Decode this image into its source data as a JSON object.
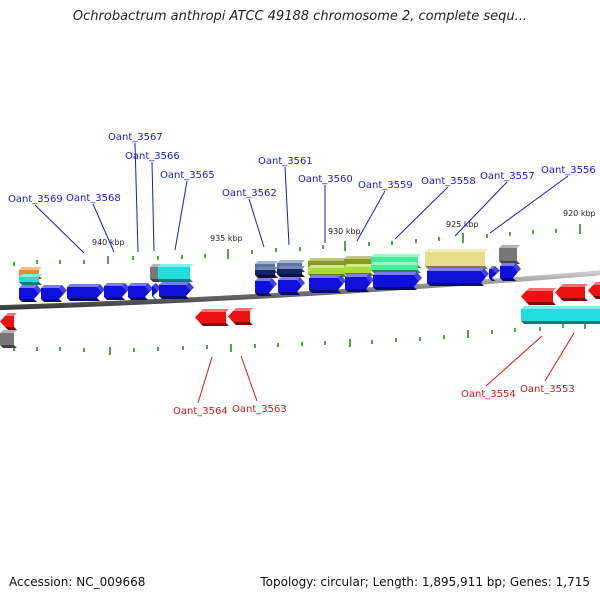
{
  "title": "Ochrobactrum anthropi ATCC 49188 chromosome 2, complete sequ...",
  "footer": {
    "accession": "Accession: NC_009668",
    "summary": "Topology: circular; Length: 1,895,911 bp; Genes: 1,715"
  },
  "scale_ticks": [
    "940 kbp",
    "935 kbp",
    "930 kbp",
    "925 kbp",
    "920 kbp"
  ],
  "genes_forward": [
    "Oant_3569",
    "Oant_3568",
    "Oant_3567",
    "Oant_3566",
    "Oant_3565",
    "Oant_3562",
    "Oant_3561",
    "Oant_3560",
    "Oant_3559",
    "Oant_3558",
    "Oant_3557",
    "Oant_3556"
  ],
  "genes_reverse": [
    "Oant_3564",
    "Oant_3563",
    "Oant_3554",
    "Oant_3553"
  ],
  "colors": {
    "forward_gene": "#1010dd",
    "reverse_gene": "#ee1111",
    "forward_label": "#1a1acc",
    "reverse_label": "#cc1a1a",
    "backbone": "#808080",
    "tick": "#2a8a2a",
    "domain_cyan": "#22dddd",
    "domain_green": "#44ee99",
    "domain_olive": "#889922",
    "domain_lime": "#aadd33",
    "domain_khaki": "#e8dd88",
    "domain_orange": "#ee8822",
    "domain_gray": "#777777",
    "domain_steel": "#5577aa",
    "domain_navy": "#112266"
  }
}
